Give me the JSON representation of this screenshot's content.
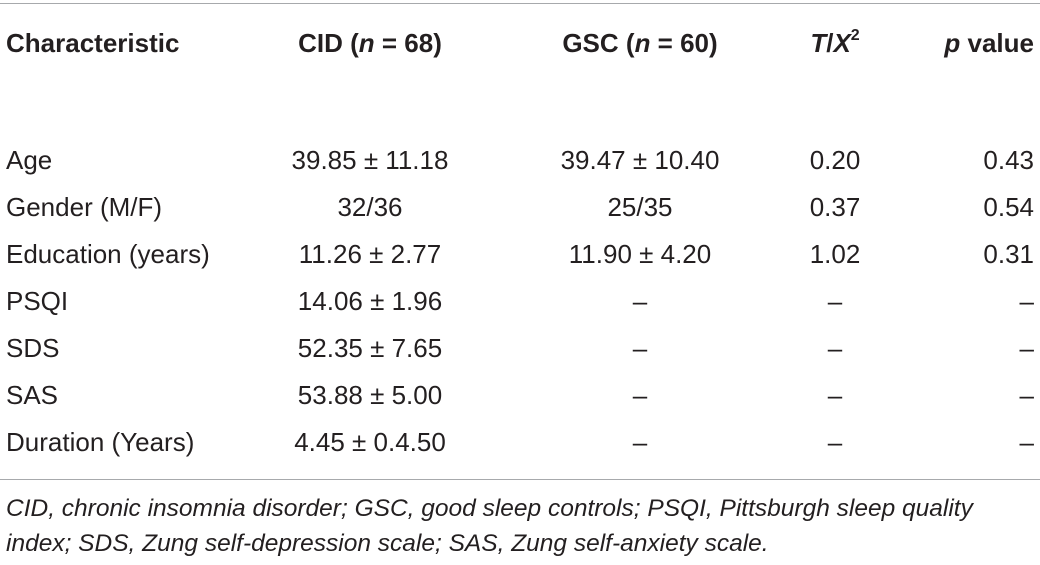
{
  "table": {
    "headers": {
      "characteristic": "Characteristic",
      "cid_prefix": "CID (",
      "cid_n": "n",
      "cid_suffix": " = 68)",
      "gsc_prefix": "GSC (",
      "gsc_n": "n",
      "gsc_suffix": " = 60)",
      "stat_t": "T",
      "stat_sep": "/",
      "stat_x": "X",
      "stat_sup": "2",
      "p_letter": "p",
      "p_suffix": " value"
    },
    "rows": [
      {
        "characteristic": "Age",
        "cid": "39.85 ± 11.18",
        "gsc": "39.47 ± 10.40",
        "stat": "0.20",
        "p": "0.43"
      },
      {
        "characteristic": "Gender (M/F)",
        "cid": "32/36",
        "gsc": "25/35",
        "stat": "0.37",
        "p": "0.54"
      },
      {
        "characteristic": "Education (years)",
        "cid": "11.26 ± 2.77",
        "gsc": "11.90 ± 4.20",
        "stat": "1.02",
        "p": "0.31"
      },
      {
        "characteristic": "PSQI",
        "cid": "14.06 ± 1.96",
        "gsc": "–",
        "stat": "–",
        "p": "–"
      },
      {
        "characteristic": "SDS",
        "cid": "52.35 ± 7.65",
        "gsc": "–",
        "stat": "–",
        "p": "–"
      },
      {
        "characteristic": "SAS",
        "cid": "53.88 ± 5.00",
        "gsc": "–",
        "stat": "–",
        "p": "–"
      },
      {
        "characteristic": "Duration (Years)",
        "cid": "4.45 ± 0.4.50",
        "gsc": "–",
        "stat": "–",
        "p": "–"
      }
    ],
    "footnote": "CID, chronic insomnia disorder; GSC, good sleep controls; PSQI, Pittsburgh sleep quality index; SDS, Zung self-depression scale; SAS, Zung self-anxiety scale."
  }
}
